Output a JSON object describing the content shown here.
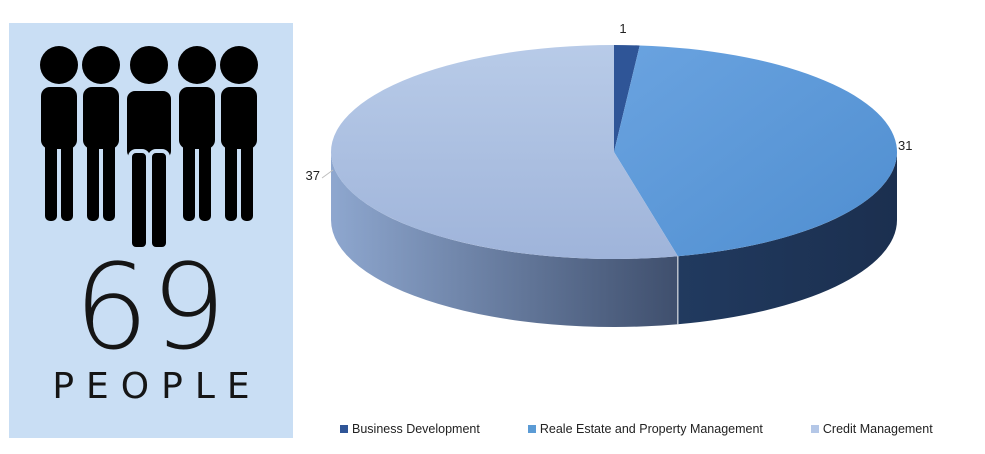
{
  "people": {
    "count": "69",
    "label": "PEOPLE"
  },
  "chart_data": {
    "type": "pie",
    "style": "3d",
    "title": "",
    "labels": [
      "Business Development",
      "Reale Estate and Property Management",
      "Credit Management"
    ],
    "values": [
      1,
      31,
      37
    ],
    "colors": [
      "#2f5597",
      "#5b9bd5",
      "#b4c7e7"
    ],
    "data_labels": [
      "1",
      "31",
      "37"
    ],
    "legend_position": "bottom"
  }
}
